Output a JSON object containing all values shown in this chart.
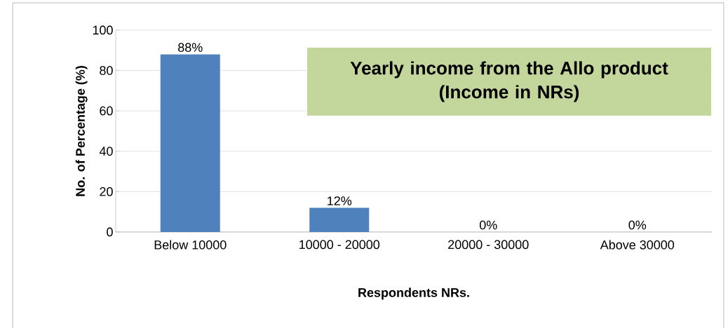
{
  "chart_data": {
    "type": "bar",
    "title": "Yearly income from the Allo product\n(Income in NRs)",
    "xlabel": "Respondents NRs.",
    "ylabel": "No. of Percentage (%)",
    "categories": [
      "Below 10000",
      "10000 - 20000",
      "20000 - 30000",
      "Above 30000"
    ],
    "values": [
      88,
      12,
      0,
      0
    ],
    "value_labels": [
      "88%",
      "12%",
      "0%",
      "0%"
    ],
    "color": "#4f81bd",
    "ylim": [
      0,
      100
    ],
    "yticks": [
      0,
      20,
      40,
      60,
      80,
      100
    ],
    "grid": "y"
  }
}
